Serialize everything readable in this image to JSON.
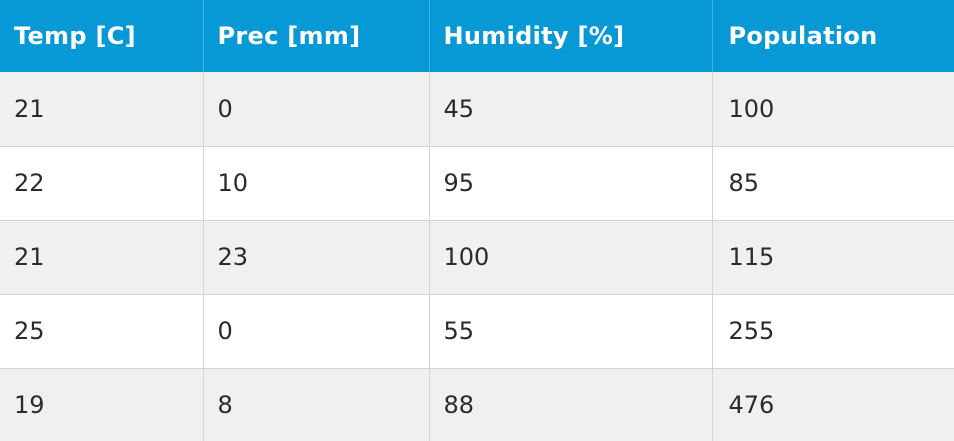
{
  "table": {
    "headers": [
      "Temp [C]",
      "Prec [mm]",
      "Humidity [%]",
      "Population"
    ],
    "rows": [
      [
        "21",
        "0",
        "45",
        "100"
      ],
      [
        "22",
        "10",
        "95",
        "85"
      ],
      [
        "21",
        "23",
        "100",
        "115"
      ],
      [
        "25",
        "0",
        "55",
        "255"
      ],
      [
        "19",
        "8",
        "88",
        "476"
      ]
    ]
  },
  "colors": {
    "header_bg": "#0799d6",
    "header_text": "#ffffff",
    "row_alt_bg": "#eff0f0",
    "row_bg": "#ffffff",
    "cell_text": "#2b2b2b"
  }
}
